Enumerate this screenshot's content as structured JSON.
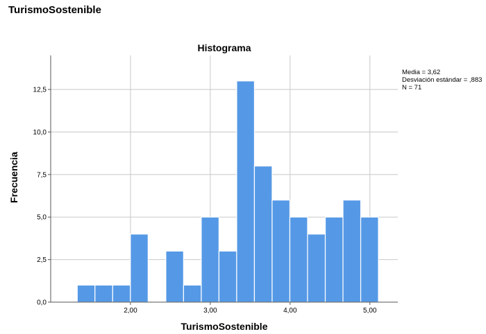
{
  "page": {
    "variable_title": "TurismoSostenible"
  },
  "stats": {
    "lines": [
      "Media = 3,62",
      "Desviación estándar = ,883",
      "N = 71"
    ]
  },
  "chart_data": {
    "type": "bar",
    "title": "Histograma",
    "xlabel": "TurismoSostenible",
    "ylabel": "Frecuencia",
    "bin_width": 0.222,
    "bins": [
      {
        "start": 1.333,
        "count": 1
      },
      {
        "start": 1.555,
        "count": 1
      },
      {
        "start": 1.777,
        "count": 1
      },
      {
        "start": 1.999,
        "count": 4
      },
      {
        "start": 2.221,
        "count": 0
      },
      {
        "start": 2.443,
        "count": 3
      },
      {
        "start": 2.665,
        "count": 1
      },
      {
        "start": 2.887,
        "count": 5
      },
      {
        "start": 3.109,
        "count": 3
      },
      {
        "start": 3.331,
        "count": 13
      },
      {
        "start": 3.553,
        "count": 8
      },
      {
        "start": 3.775,
        "count": 6
      },
      {
        "start": 3.997,
        "count": 5
      },
      {
        "start": 4.219,
        "count": 4
      },
      {
        "start": 4.441,
        "count": 5
      },
      {
        "start": 4.663,
        "count": 6
      },
      {
        "start": 4.885,
        "count": 5
      }
    ],
    "xlim": [
      1.0,
      5.35
    ],
    "ylim": [
      0,
      14.5
    ],
    "x_ticks": [
      2,
      3,
      4,
      5
    ],
    "x_tick_labels": [
      "2,00",
      "3,00",
      "4,00",
      "5,00"
    ],
    "y_ticks": [
      0,
      2.5,
      5,
      7.5,
      10,
      12.5
    ],
    "y_tick_labels": [
      "0,0",
      "2,5",
      "5,0",
      "7,5",
      "10,0",
      "12,5"
    ],
    "bar_color": "#5599e6",
    "grid": "both"
  }
}
